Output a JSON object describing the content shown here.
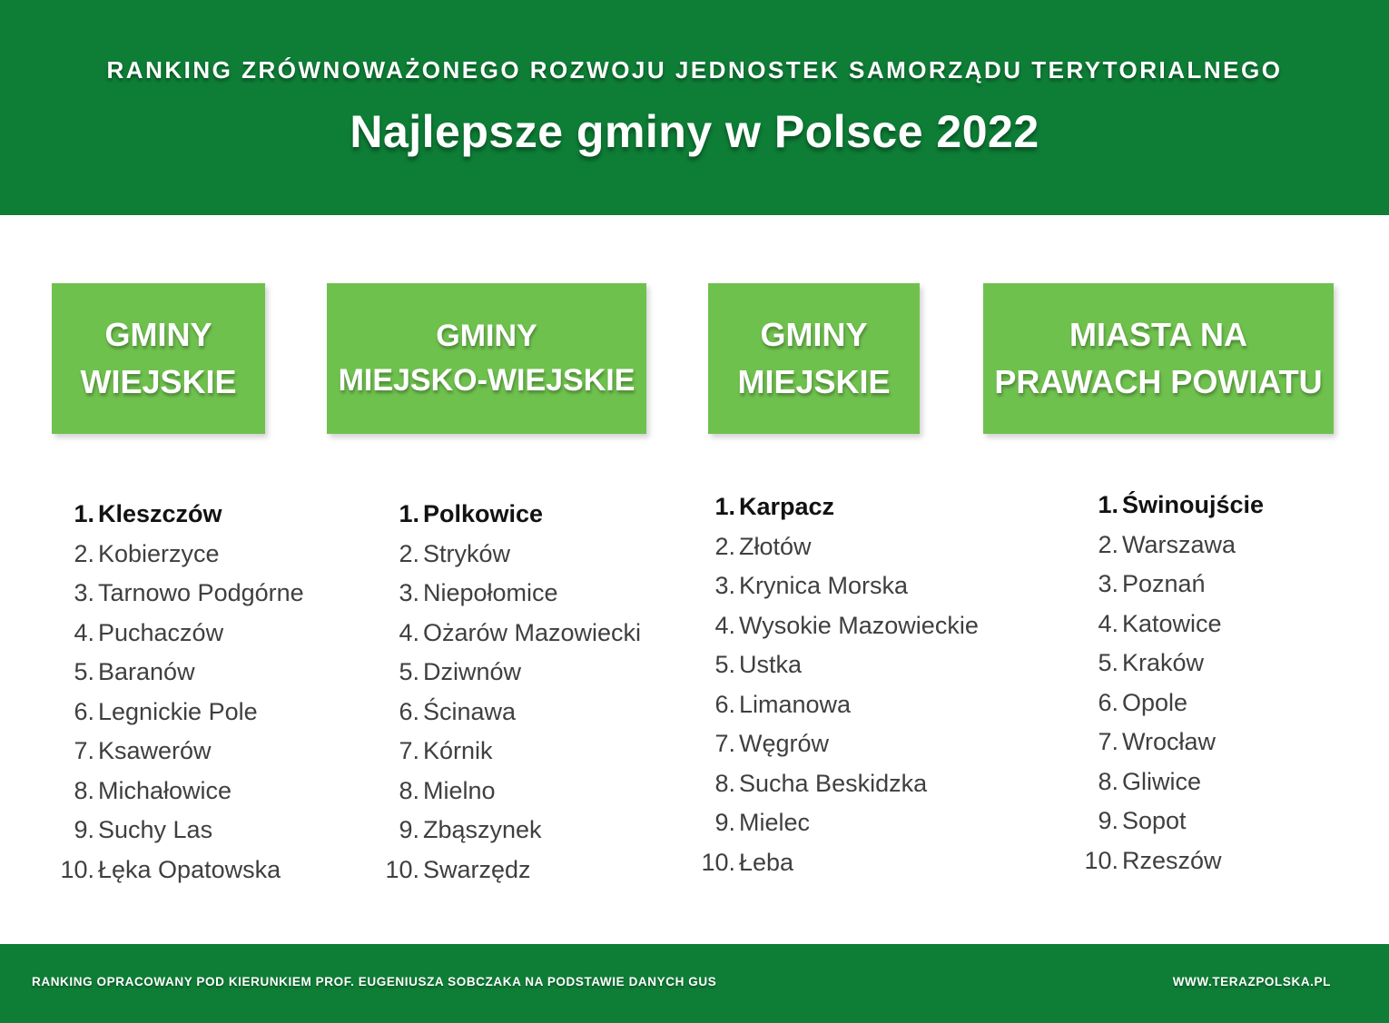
{
  "header": {
    "kicker": "RANKING ZRÓWNOWAŻONEGO ROZWOJU JEDNOSTEK SAMORZĄDU TERYTORIALNEGO",
    "title": "Najlepsze gminy w Polsce 2022"
  },
  "colors": {
    "dark_green": "#0e7d36",
    "light_green": "#6fc14e",
    "text_dark": "#3f3f3f",
    "text_bold": "#121212"
  },
  "columns": [
    {
      "heading_line1": "GMINY",
      "heading_line2": "WIEJSKIE",
      "items": [
        {
          "rank": "1.",
          "name": "Kleszczów"
        },
        {
          "rank": "2.",
          "name": "Kobierzyce"
        },
        {
          "rank": "3.",
          "name": "Tarnowo Podgórne"
        },
        {
          "rank": "4.",
          "name": "Puchaczów"
        },
        {
          "rank": "5.",
          "name": "Baranów"
        },
        {
          "rank": "6.",
          "name": "Legnickie Pole"
        },
        {
          "rank": "7.",
          "name": "Ksawerów"
        },
        {
          "rank": "8.",
          "name": "Michałowice"
        },
        {
          "rank": "9.",
          "name": "Suchy Las"
        },
        {
          "rank": "10.",
          "name": "Łęka Opatowska"
        }
      ]
    },
    {
      "heading_line1": "GMINY",
      "heading_line2": "MIEJSKO-WIEJSKIE",
      "items": [
        {
          "rank": "1.",
          "name": "Polkowice"
        },
        {
          "rank": "2.",
          "name": "Stryków"
        },
        {
          "rank": "3.",
          "name": "Niepołomice"
        },
        {
          "rank": "4.",
          "name": "Ożarów Mazowiecki"
        },
        {
          "rank": "5.",
          "name": "Dziwnów"
        },
        {
          "rank": "6.",
          "name": "Ścinawa"
        },
        {
          "rank": "7.",
          "name": "Kórnik"
        },
        {
          "rank": "8.",
          "name": "Mielno"
        },
        {
          "rank": "9.",
          "name": "Zbąszynek"
        },
        {
          "rank": "10.",
          "name": "Swarzędz"
        }
      ]
    },
    {
      "heading_line1": "GMINY",
      "heading_line2": "MIEJSKIE",
      "items": [
        {
          "rank": "1.",
          "name": "Karpacz"
        },
        {
          "rank": "2.",
          "name": "Złotów"
        },
        {
          "rank": "3.",
          "name": "Krynica Morska"
        },
        {
          "rank": "4.",
          "name": "Wysokie Mazowieckie"
        },
        {
          "rank": "5.",
          "name": "Ustka"
        },
        {
          "rank": "6.",
          "name": "Limanowa"
        },
        {
          "rank": "7.",
          "name": "Węgrów"
        },
        {
          "rank": "8.",
          "name": "Sucha Beskidzka"
        },
        {
          "rank": "9.",
          "name": "Mielec"
        },
        {
          "rank": "10.",
          "name": "Łeba"
        }
      ]
    },
    {
      "heading_line1": "MIASTA NA",
      "heading_line2": "PRAWACH POWIATU",
      "items": [
        {
          "rank": "1.",
          "name": "Świnoujście"
        },
        {
          "rank": "2.",
          "name": "Warszawa"
        },
        {
          "rank": "3.",
          "name": "Poznań"
        },
        {
          "rank": "4.",
          "name": "Katowice"
        },
        {
          "rank": "5.",
          "name": "Kraków"
        },
        {
          "rank": "6.",
          "name": "Opole"
        },
        {
          "rank": "7.",
          "name": "Wrocław"
        },
        {
          "rank": "8.",
          "name": "Gliwice"
        },
        {
          "rank": "9.",
          "name": "Sopot"
        },
        {
          "rank": "10.",
          "name": "Rzeszów"
        }
      ]
    }
  ],
  "footer": {
    "credit": "RANKING OPRACOWANY POD KIERUNKIEM PROF. EUGENIUSZA SOBCZAKA NA PODSTAWIE DANYCH GUS",
    "website": "WWW.TERAZPOLSKA.PL"
  }
}
